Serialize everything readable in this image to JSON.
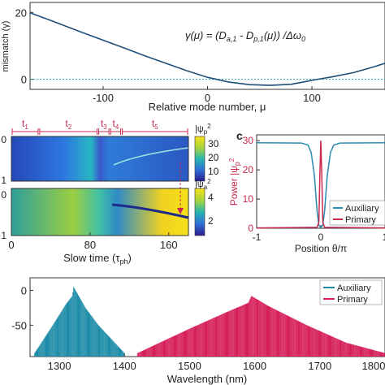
{
  "chart_data": [
    {
      "type": "line",
      "panel": "a",
      "ylabel": "mismatch (γ)",
      "xlabel": "Relative mode number, μ",
      "equation": "γ(μ) = (D_a,1 - D_p,1(μ)) /Δω_0",
      "xlim": [
        -170,
        170
      ],
      "ylim": [
        -3,
        23
      ],
      "xticks": [
        "-100",
        "0",
        "100"
      ],
      "yticks": [
        "0",
        "20"
      ],
      "grid": false,
      "series": [
        {
          "x": [
            -170,
            -150,
            -120,
            -100,
            -80,
            -60,
            -40,
            -20,
            0,
            20,
            40,
            60,
            80,
            100,
            120,
            140,
            160,
            170
          ],
          "y": [
            19.9,
            17.6,
            14.0,
            11.7,
            9.4,
            7.0,
            4.8,
            2.6,
            0.6,
            -0.8,
            -1.6,
            -1.8,
            -1.5,
            -0.3,
            0.8,
            2.0,
            3.8,
            4.8
          ],
          "color": "#1f4e79"
        }
      ],
      "reference_line": {
        "y": 0,
        "style": "dotted",
        "color": "#2a9fb2"
      }
    },
    {
      "type": "heatmap",
      "panel": "b",
      "xlabel": "Slow time (τ_ph)",
      "xticks": [
        "0",
        "80",
        "160"
      ],
      "xlim": [
        0,
        180
      ],
      "stage_labels": [
        "t1",
        "t2",
        "t3",
        "t4",
        "t5"
      ],
      "stage_bounds": [
        0,
        28,
        88,
        100,
        112,
        180
      ],
      "top": {
        "ytick_top": "0",
        "ytick_bottom": "1",
        "colorbar_label": "|ψ_p|²",
        "colorbar_ticks": [
          "30",
          "20",
          "10"
        ]
      },
      "bottom": {
        "ytick_top": "0",
        "ytick_bottom": "1",
        "colorbar_label": "|ψ_a|²",
        "colorbar_ticks": [
          "4",
          "2"
        ]
      }
    },
    {
      "type": "line",
      "panel": "c",
      "panel_label": "c",
      "ylabel": "Power |ψ_p|²",
      "xlabel": "Position θ/π",
      "xlim": [
        -1,
        1
      ],
      "ylim": [
        0,
        32
      ],
      "xticks": [
        "-1",
        "0",
        "1"
      ],
      "yticks": [
        "0",
        "10",
        "20",
        "30"
      ],
      "legend_position": "bottom-right",
      "series": [
        {
          "name": "Auxiliary",
          "color": "#2a8bb0",
          "x": [
            -1,
            -0.3,
            -0.2,
            -0.15,
            -0.1,
            -0.06,
            -0.03,
            0,
            0.03,
            0.06,
            0.1,
            0.15,
            0.2,
            0.3,
            1
          ],
          "y": [
            29.3,
            29.2,
            28.5,
            26.0,
            18.0,
            6.0,
            1.0,
            0.3,
            1.0,
            6.0,
            18.0,
            26.0,
            28.5,
            29.2,
            29.3
          ]
        },
        {
          "name": "Primary",
          "color": "#c8284c",
          "x": [
            -1,
            -0.06,
            -0.03,
            -0.015,
            0,
            0.015,
            0.03,
            0.06,
            1
          ],
          "y": [
            0.1,
            0.3,
            2.0,
            18.0,
            30.0,
            18.0,
            2.0,
            0.3,
            0.1
          ]
        }
      ]
    },
    {
      "type": "bar",
      "panel": "d",
      "xlabel": "Wavelength (nm)",
      "xlim": [
        1255,
        1800
      ],
      "ylim": [
        -95,
        18
      ],
      "xticks": [
        "1300",
        "1400",
        "1500",
        "1600",
        "1700",
        "1800"
      ],
      "yticks": [
        "0",
        "-50"
      ],
      "legend_position": "top-right",
      "series": [
        {
          "name": "Auxiliary",
          "color": "#1e8ca8",
          "envelope": {
            "x": [
              1262,
              1290,
              1310,
              1320,
              1322,
              1340,
              1360,
              1380,
              1400
            ],
            "y": [
              -90,
              -50,
              -20,
              -8,
              5,
              -25,
              -50,
              -70,
              -90
            ]
          }
        },
        {
          "name": "Primary",
          "color": "#d6205a",
          "envelope": {
            "x": [
              1420,
              1500,
              1560,
              1590,
              1595,
              1620,
              1680,
              1740,
              1800
            ],
            "y": [
              -90,
              -55,
              -30,
              -18,
              -8,
              -22,
              -50,
              -75,
              -90
            ]
          }
        }
      ]
    }
  ]
}
